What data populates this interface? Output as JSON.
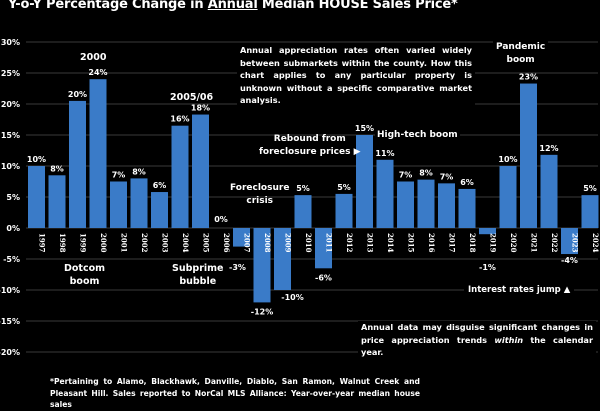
{
  "title": {
    "prefix": "Y-o-Y Percentage Change in ",
    "underlined": "Annual",
    "suffix": " Median HOUSE Sales Price*"
  },
  "chart_data": {
    "type": "bar",
    "title": "Y-o-Y Percentage Change in Annual Median HOUSE Sales Price*",
    "xlabel": "",
    "ylabel": "",
    "ylim": [
      -20,
      30
    ],
    "yticks": [
      30,
      25,
      20,
      15,
      10,
      5,
      0,
      -5,
      -10,
      -15,
      -20
    ],
    "ytick_labels": [
      "30%",
      "25%",
      "20%",
      "15%",
      "10%",
      "5%",
      "0%",
      "-5%",
      "-10%",
      "-15%",
      "-20%"
    ],
    "grid": true,
    "bar_color": "#3a7bc8",
    "categories": [
      "1997",
      "1998",
      "1999",
      "2000",
      "2001",
      "2002",
      "2003",
      "2004",
      "2005",
      "2006",
      "2007",
      "2008",
      "2009",
      "2010",
      "2011",
      "2012",
      "2013",
      "2014",
      "2015",
      "2016",
      "2017",
      "2018",
      "2019",
      "2020",
      "2021",
      "2022",
      "2023",
      "2024"
    ],
    "values": [
      10,
      8.5,
      20.5,
      24,
      7.5,
      8,
      5.8,
      16.5,
      18.3,
      0,
      -3,
      -12,
      -10,
      5.3,
      -6.5,
      5.5,
      15,
      11,
      7.5,
      7.8,
      7.2,
      6.3,
      -1,
      10,
      23.3,
      11.8,
      -4.2,
      5.3
    ],
    "labels": [
      "10%",
      "8%",
      "20%",
      "24%",
      "7%",
      "8%",
      "6%",
      "16%",
      "18%",
      "0%",
      "-3%",
      "-12%",
      "-10%",
      "5%",
      "-6%",
      "5%",
      "15%",
      "11%",
      "7%",
      "8%",
      "7%",
      "6%",
      "-1%",
      "10%",
      "23%",
      "12%",
      "-4%",
      "5%"
    ]
  },
  "annotations": {
    "y2000": "2000",
    "y2005": "2005/06",
    "dotcom": [
      "Dotcom",
      "boom"
    ],
    "subprime": [
      "Subprime",
      "bubble"
    ],
    "foreclosure": [
      "Foreclosure",
      "crisis"
    ],
    "rebound": [
      "Rebound from",
      "foreclosure prices ▶"
    ],
    "hightech": "High-tech boom",
    "pandemic": [
      "Pandemic",
      "boom"
    ],
    "interest": "Interest rates jump ▲"
  },
  "notes": {
    "top_box": "Annual appreciation rates often varied widely between submarkets within the county. How this chart applies to any particular property is unknown without a specific comparative market analysis.",
    "bottom_box_1": "Annual data may disguise significant changes in price appreciation trends ",
    "bottom_box_em": "within",
    "bottom_box_2": " the calendar year.",
    "footnote": "*Pertaining to Alamo, Blackhawk, Danville, Diablo, San Ramon, Walnut Creek and Pleasant Hill. Sales reported to NorCal MLS Alliance: Year-over-year median house sales"
  }
}
